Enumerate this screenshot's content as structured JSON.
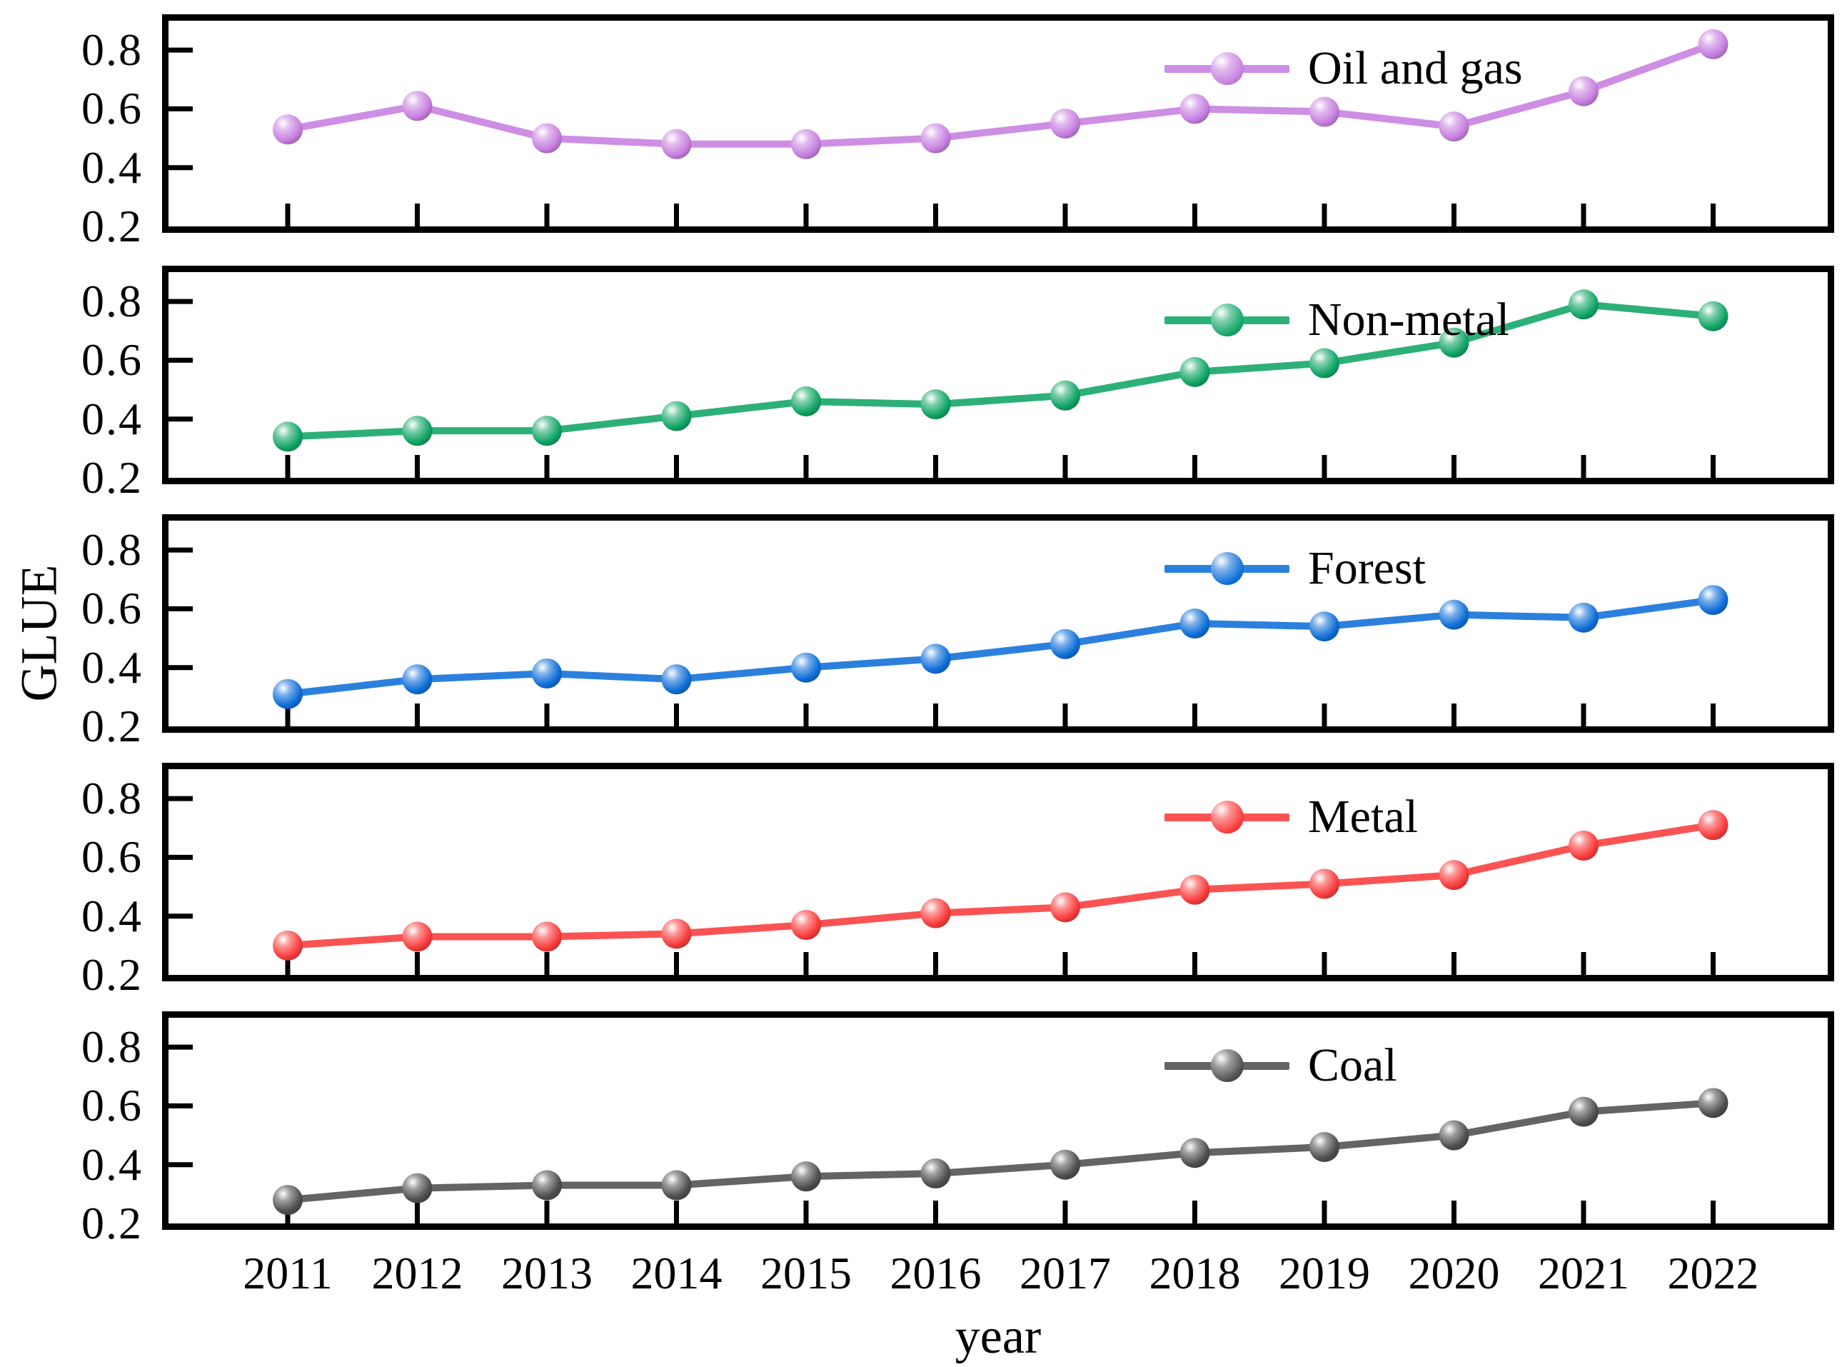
{
  "chart_data": {
    "type": "line",
    "title": "",
    "xlabel": "year",
    "ylabel": "GLUE",
    "categories": [
      "2011",
      "2012",
      "2013",
      "2014",
      "2015",
      "2016",
      "2017",
      "2018",
      "2019",
      "2020",
      "2021",
      "2022"
    ],
    "ylim": [
      0.2,
      0.9
    ],
    "yticks": [
      "0.8",
      "0.6",
      "0.4",
      "0.2"
    ],
    "ytick_values": [
      0.8,
      0.6,
      0.4,
      0.2
    ],
    "grid": false,
    "layout": "5 stacked subplots sharing x-axis, legend inside each subplot top-right of center",
    "series": [
      {
        "name": "Oil and gas",
        "color": "#c77fe0",
        "values": [
          0.53,
          0.61,
          0.5,
          0.48,
          0.48,
          0.5,
          0.55,
          0.6,
          0.59,
          0.54,
          0.66,
          0.82
        ]
      },
      {
        "name": "Non-metal",
        "color": "#10a565",
        "values": [
          0.34,
          0.36,
          0.36,
          0.41,
          0.46,
          0.45,
          0.48,
          0.56,
          0.59,
          0.66,
          0.79,
          0.75
        ]
      },
      {
        "name": "Forest",
        "color": "#0f6fd8",
        "values": [
          0.31,
          0.36,
          0.38,
          0.36,
          0.4,
          0.43,
          0.48,
          0.55,
          0.54,
          0.58,
          0.57,
          0.63
        ]
      },
      {
        "name": "Metal",
        "color": "#fa3c3c",
        "values": [
          0.3,
          0.33,
          0.33,
          0.34,
          0.37,
          0.41,
          0.43,
          0.49,
          0.51,
          0.54,
          0.64,
          0.71
        ]
      },
      {
        "name": "Coal",
        "color": "#4f4f4f",
        "values": [
          0.28,
          0.32,
          0.33,
          0.33,
          0.36,
          0.37,
          0.4,
          0.44,
          0.46,
          0.5,
          0.58,
          0.61
        ]
      }
    ]
  }
}
